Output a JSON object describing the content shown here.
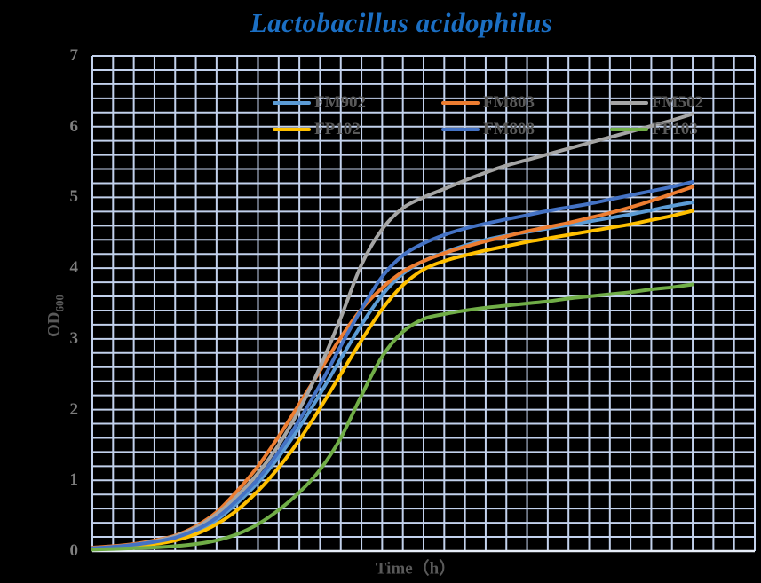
{
  "title": {
    "text": "Lactobacillus acidophilus",
    "color": "#1b6fc4"
  },
  "chart_data": {
    "type": "line",
    "title": "Lactobacillus acidophilus",
    "xlabel": "Time（h）",
    "ylabel": "OD",
    "ylabel_sub": "600",
    "xlim": [
      0,
      32
    ],
    "ylim": [
      0,
      7
    ],
    "x_tick_labels": [],
    "y_ticks": [
      0,
      1,
      2,
      3,
      4,
      5,
      6,
      7
    ],
    "grid": {
      "x_minor_step": 1,
      "y_minor_step": 0.2,
      "on": true,
      "color": "#c2d1ec",
      "axis_color": "#e7edf8"
    },
    "legend": {
      "position": "top-inside",
      "rows": 2,
      "columns": 3,
      "text_color": "#595959"
    },
    "background": "#000000",
    "axis_text_color": "#7f7f7f",
    "x": [
      0,
      1,
      2,
      3,
      4,
      5,
      6,
      7,
      8,
      9,
      10,
      11,
      12,
      13,
      14,
      15,
      16,
      17,
      18,
      19,
      20,
      21,
      22,
      23,
      24,
      25,
      26,
      27,
      28,
      29
    ],
    "series": [
      {
        "name": "FM902",
        "color": "#5B9BD5",
        "values": [
          0.04,
          0.06,
          0.08,
          0.12,
          0.18,
          0.28,
          0.44,
          0.68,
          0.97,
          1.33,
          1.75,
          2.22,
          2.72,
          3.2,
          3.62,
          3.92,
          4.1,
          4.22,
          4.32,
          4.4,
          4.46,
          4.51,
          4.56,
          4.61,
          4.66,
          4.71,
          4.76,
          4.82,
          4.88,
          4.93
        ]
      },
      {
        "name": "FM803",
        "color": "#ED7D31",
        "values": [
          0.05,
          0.07,
          0.1,
          0.15,
          0.22,
          0.35,
          0.55,
          0.85,
          1.2,
          1.62,
          2.08,
          2.55,
          3.02,
          3.42,
          3.72,
          3.95,
          4.1,
          4.21,
          4.3,
          4.38,
          4.45,
          4.52,
          4.58,
          4.64,
          4.71,
          4.78,
          4.86,
          4.95,
          5.05,
          5.15
        ]
      },
      {
        "name": "FM502",
        "color": "#A5A5A5",
        "values": [
          0.04,
          0.06,
          0.09,
          0.14,
          0.21,
          0.33,
          0.52,
          0.78,
          1.1,
          1.5,
          2.0,
          2.6,
          3.3,
          4.05,
          4.55,
          4.85,
          5.0,
          5.12,
          5.24,
          5.35,
          5.45,
          5.53,
          5.61,
          5.69,
          5.77,
          5.85,
          5.93,
          6.01,
          6.09,
          6.18
        ]
      },
      {
        "name": "FP102",
        "color": "#FFC000",
        "values": [
          0.03,
          0.05,
          0.07,
          0.1,
          0.15,
          0.24,
          0.38,
          0.58,
          0.85,
          1.18,
          1.57,
          2.02,
          2.5,
          2.98,
          3.42,
          3.76,
          3.98,
          4.1,
          4.18,
          4.25,
          4.31,
          4.37,
          4.42,
          4.47,
          4.52,
          4.57,
          4.62,
          4.68,
          4.74,
          4.81
        ]
      },
      {
        "name": "FM808",
        "color": "#4472C4",
        "values": [
          0.04,
          0.06,
          0.09,
          0.13,
          0.19,
          0.3,
          0.47,
          0.72,
          1.02,
          1.4,
          1.85,
          2.35,
          2.9,
          3.42,
          3.88,
          4.18,
          4.35,
          4.47,
          4.56,
          4.63,
          4.69,
          4.75,
          4.81,
          4.86,
          4.91,
          4.97,
          5.03,
          5.09,
          5.15,
          5.22
        ]
      },
      {
        "name": "FP103",
        "color": "#70AD47",
        "values": [
          0.02,
          0.03,
          0.04,
          0.05,
          0.07,
          0.1,
          0.15,
          0.24,
          0.38,
          0.58,
          0.83,
          1.15,
          1.6,
          2.2,
          2.75,
          3.1,
          3.28,
          3.35,
          3.4,
          3.44,
          3.47,
          3.5,
          3.53,
          3.57,
          3.6,
          3.63,
          3.66,
          3.7,
          3.73,
          3.77
        ]
      }
    ]
  }
}
